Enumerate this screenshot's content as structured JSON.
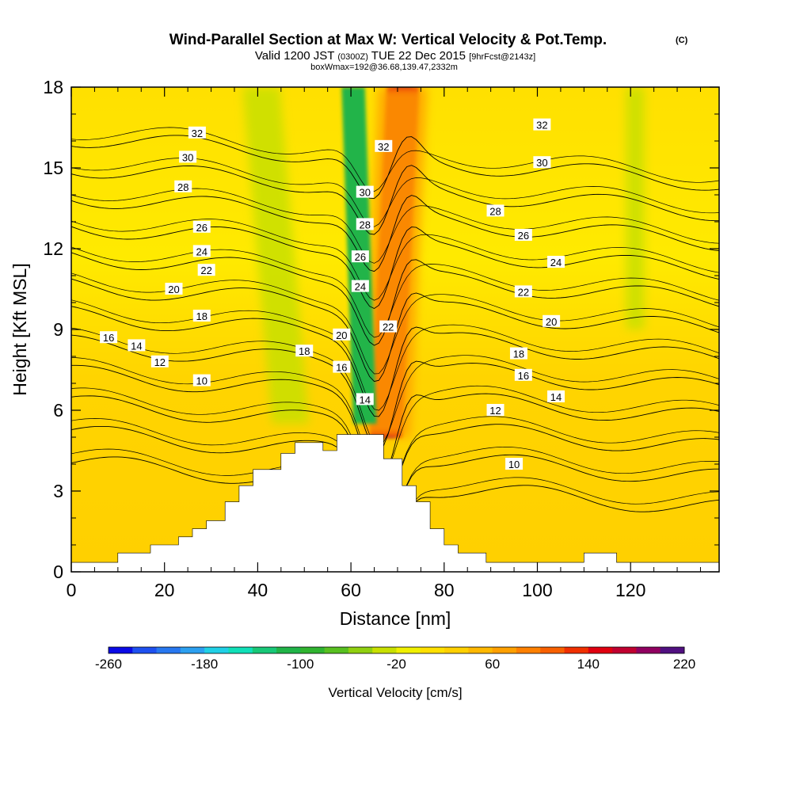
{
  "title": {
    "main": "Wind-Parallel Section at Max W: Vertical Velocity & Pot.Temp.",
    "copyright": "(C)",
    "line2": "Valid 1200 JST",
    "line2_utc": "(0300Z)",
    "line2_date": "TUE 22 Dec 2015",
    "line2_fcst": "[9hrFcst@2143z]",
    "line3": "boxWmax=192@36.68,139.47,2332m"
  },
  "chart_data": {
    "type": "heatmap",
    "xlabel": "Distance [nm]",
    "ylabel": "Height [Kft MSL]",
    "xlim": [
      0,
      139
    ],
    "ylim": [
      0,
      18
    ],
    "x_ticks": [
      0,
      20,
      40,
      60,
      80,
      100,
      120
    ],
    "x_minor_step": 5,
    "y_ticks": [
      0,
      3,
      6,
      9,
      12,
      15,
      18
    ],
    "y_minor_step": 1,
    "colorbar": {
      "label": "Vertical Velocity [cm/s]",
      "min": -260,
      "max": 220,
      "step": 20,
      "tick_labels": [
        "-260",
        "-180",
        "-100",
        "-20",
        "60",
        "140",
        "220"
      ],
      "colors": [
        "#0a0ae6",
        "#1e50f0",
        "#2878f0",
        "#2ca0f0",
        "#20d0e6",
        "#10e0b8",
        "#18c878",
        "#20b448",
        "#30b430",
        "#58c020",
        "#90d010",
        "#c8e000",
        "#f0f000",
        "#ffe000",
        "#ffd000",
        "#ffb800",
        "#ffa000",
        "#ff8000",
        "#f86000",
        "#f03000",
        "#e00010",
        "#c00030",
        "#900060",
        "#501080"
      ]
    },
    "terrain_outline": [
      [
        0,
        0.35
      ],
      [
        10,
        0.35
      ],
      [
        10,
        0.7
      ],
      [
        17,
        0.7
      ],
      [
        17,
        1.0
      ],
      [
        23,
        1.0
      ],
      [
        23,
        1.3
      ],
      [
        26,
        1.3
      ],
      [
        26,
        1.6
      ],
      [
        29,
        1.6
      ],
      [
        29,
        1.9
      ],
      [
        33,
        1.9
      ],
      [
        33,
        2.6
      ],
      [
        36,
        2.6
      ],
      [
        36,
        3.2
      ],
      [
        39,
        3.2
      ],
      [
        39,
        3.8
      ],
      [
        45,
        3.8
      ],
      [
        45,
        4.4
      ],
      [
        48,
        4.4
      ],
      [
        48,
        4.8
      ],
      [
        54,
        4.8
      ],
      [
        54,
        4.5
      ],
      [
        57,
        4.5
      ],
      [
        57,
        5.1
      ],
      [
        67,
        5.1
      ],
      [
        67,
        4.2
      ],
      [
        71,
        4.2
      ],
      [
        71,
        3.2
      ],
      [
        74,
        3.2
      ],
      [
        74,
        2.6
      ],
      [
        77,
        2.6
      ],
      [
        77,
        1.6
      ],
      [
        80,
        1.6
      ],
      [
        80,
        1.0
      ],
      [
        83,
        1.0
      ],
      [
        83,
        0.7
      ],
      [
        89,
        0.7
      ],
      [
        89,
        0.35
      ],
      [
        110,
        0.35
      ],
      [
        110,
        0.7
      ],
      [
        117,
        0.7
      ],
      [
        117,
        0.35
      ],
      [
        139,
        0.35
      ]
    ],
    "series": [
      {
        "name": "Vertical Velocity",
        "kind": "filled",
        "bands": [
          {
            "x_center": 67.5,
            "y_from": 5.0,
            "slant": 0.28,
            "half_width": 2.0,
            "value": 220
          },
          {
            "x_center": 67.5,
            "y_from": 5.0,
            "slant": 0.28,
            "half_width": 3.4,
            "value": 150
          },
          {
            "x_center": 67.5,
            "y_from": 5.0,
            "slant": 0.28,
            "half_width": 5.2,
            "value": 70
          },
          {
            "x_center": 63.0,
            "y_from": 5.5,
            "slant": -0.2,
            "half_width": 2.5,
            "value": -120
          },
          {
            "x_center": 47.0,
            "y_from": 5.5,
            "slant": -0.5,
            "half_width": 4.0,
            "value": -40
          },
          {
            "x_center": 121.0,
            "y_from": 9.0,
            "slant": 0.0,
            "half_width": 2.0,
            "value": -30
          }
        ]
      },
      {
        "name": "Pot.Temp.",
        "kind": "contours",
        "levels": [
          10,
          12,
          14,
          16,
          18,
          20,
          22,
          24,
          26,
          28,
          30,
          32
        ],
        "labels": [
          {
            "text": "32",
            "x": 27,
            "y": 16.3
          },
          {
            "text": "30",
            "x": 25,
            "y": 15.4
          },
          {
            "text": "28",
            "x": 24,
            "y": 14.3
          },
          {
            "text": "26",
            "x": 28,
            "y": 12.8
          },
          {
            "text": "24",
            "x": 28,
            "y": 11.9
          },
          {
            "text": "22",
            "x": 29,
            "y": 11.2
          },
          {
            "text": "20",
            "x": 22,
            "y": 10.5
          },
          {
            "text": "18",
            "x": 28,
            "y": 9.5
          },
          {
            "text": "16",
            "x": 8,
            "y": 8.7
          },
          {
            "text": "14",
            "x": 14,
            "y": 8.4
          },
          {
            "text": "12",
            "x": 19,
            "y": 7.8
          },
          {
            "text": "10",
            "x": 28,
            "y": 7.1
          },
          {
            "text": "32",
            "x": 67,
            "y": 15.8
          },
          {
            "text": "30",
            "x": 63,
            "y": 14.1
          },
          {
            "text": "28",
            "x": 63,
            "y": 12.9
          },
          {
            "text": "26",
            "x": 62,
            "y": 11.7
          },
          {
            "text": "24",
            "x": 62,
            "y": 10.6
          },
          {
            "text": "22",
            "x": 68,
            "y": 9.1
          },
          {
            "text": "20",
            "x": 58,
            "y": 8.8
          },
          {
            "text": "18",
            "x": 50,
            "y": 8.2
          },
          {
            "text": "16",
            "x": 58,
            "y": 7.6
          },
          {
            "text": "14",
            "x": 63,
            "y": 6.4
          },
          {
            "text": "32",
            "x": 101,
            "y": 16.6
          },
          {
            "text": "30",
            "x": 101,
            "y": 15.2
          },
          {
            "text": "28",
            "x": 91,
            "y": 13.4
          },
          {
            "text": "26",
            "x": 97,
            "y": 12.5
          },
          {
            "text": "24",
            "x": 104,
            "y": 11.5
          },
          {
            "text": "22",
            "x": 97,
            "y": 10.4
          },
          {
            "text": "20",
            "x": 103,
            "y": 9.3
          },
          {
            "text": "18",
            "x": 96,
            "y": 8.1
          },
          {
            "text": "16",
            "x": 97,
            "y": 7.3
          },
          {
            "text": "14",
            "x": 104,
            "y": 6.5
          },
          {
            "text": "12",
            "x": 91,
            "y": 6.0
          },
          {
            "text": "10",
            "x": 95,
            "y": 4.0
          }
        ]
      }
    ]
  }
}
